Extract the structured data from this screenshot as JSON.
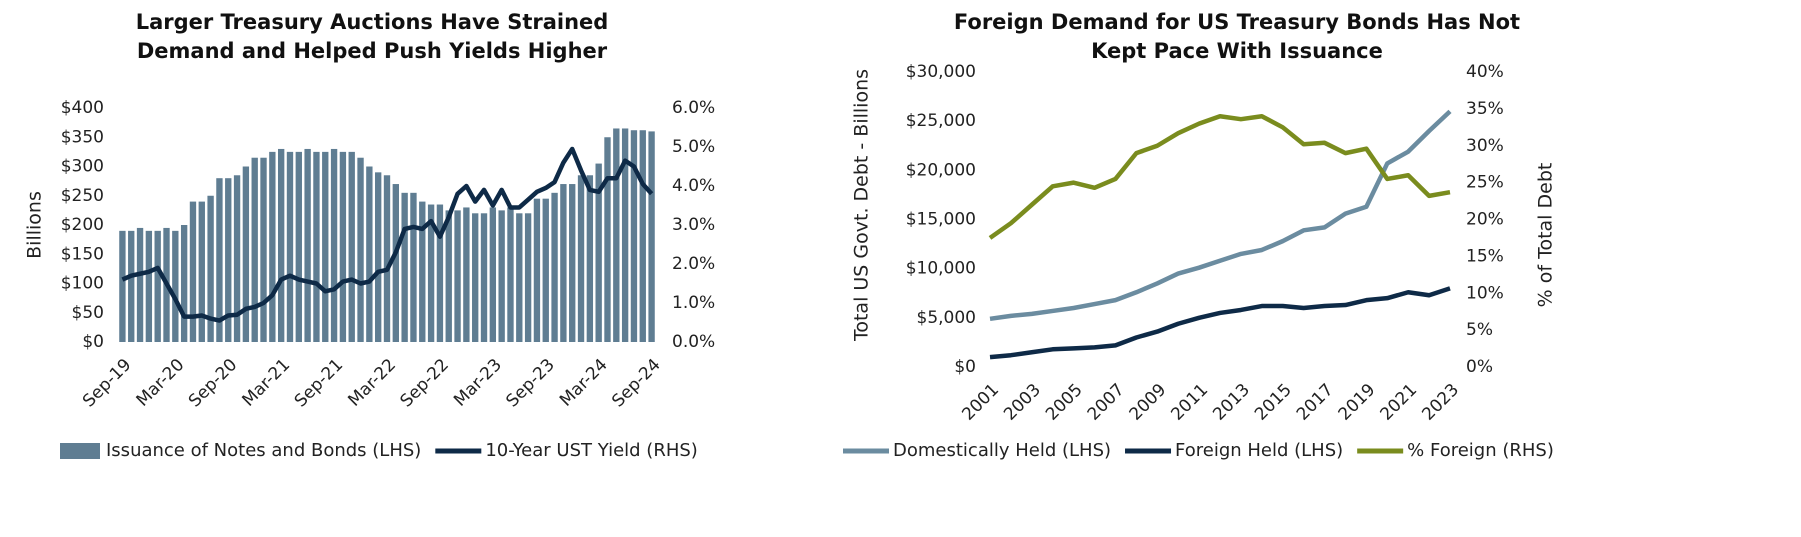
{
  "chart_data": [
    {
      "type": "bar-line",
      "title": "Larger Treasury Auctions Have Strained Demand and Helped Push Yields Higher",
      "ylabel": "Billions",
      "categories": [
        "Sep-19",
        null,
        null,
        null,
        null,
        null,
        "Mar-20",
        null,
        null,
        null,
        null,
        null,
        "Sep-20",
        null,
        null,
        null,
        null,
        null,
        "Mar-21",
        null,
        null,
        null,
        null,
        null,
        "Sep-21",
        null,
        null,
        null,
        null,
        null,
        "Mar-22",
        null,
        null,
        null,
        null,
        null,
        "Sep-22",
        null,
        null,
        null,
        null,
        null,
        "Mar-23",
        null,
        null,
        null,
        null,
        null,
        "Sep-23",
        null,
        null,
        null,
        null,
        null,
        "Mar-24",
        null,
        null,
        null,
        null,
        null,
        "Sep-24"
      ],
      "series": [
        {
          "name": "Issuance of Notes and Bonds (LHS)",
          "type": "bar",
          "color": "#5f7d92",
          "values": [
            190,
            190,
            195,
            190,
            190,
            195,
            190,
            200,
            240,
            240,
            250,
            280,
            280,
            285,
            300,
            315,
            315,
            325,
            330,
            325,
            325,
            330,
            325,
            325,
            330,
            325,
            325,
            315,
            300,
            290,
            285,
            270,
            255,
            255,
            240,
            235,
            235,
            225,
            225,
            230,
            220,
            220,
            230,
            225,
            230,
            220,
            220,
            245,
            245,
            255,
            270,
            270,
            285,
            285,
            305,
            350,
            365,
            365,
            362,
            362,
            360
          ]
        },
        {
          "name": "10-Year UST Yield (RHS)",
          "type": "line",
          "axis": "y2",
          "color": "#0e2a47",
          "values": [
            1.6,
            1.7,
            1.75,
            1.8,
            1.9,
            1.5,
            1.1,
            0.65,
            0.65,
            0.68,
            0.6,
            0.55,
            0.68,
            0.7,
            0.85,
            0.9,
            1.0,
            1.2,
            1.6,
            1.7,
            1.6,
            1.55,
            1.5,
            1.3,
            1.35,
            1.55,
            1.6,
            1.5,
            1.55,
            1.8,
            1.85,
            2.3,
            2.9,
            2.95,
            2.9,
            3.1,
            2.7,
            3.2,
            3.8,
            4.0,
            3.6,
            3.9,
            3.5,
            3.9,
            3.45,
            3.45,
            3.65,
            3.85,
            3.95,
            4.1,
            4.6,
            4.95,
            4.4,
            3.9,
            3.85,
            4.2,
            4.2,
            4.65,
            4.5,
            4.05,
            3.8
          ]
        }
      ],
      "ylim": [
        0,
        400
      ],
      "yticks": [
        {
          "value": 0,
          "label": "$0"
        },
        {
          "value": 50,
          "label": "$50"
        },
        {
          "value": 100,
          "label": "$100"
        },
        {
          "value": 150,
          "label": "$150"
        },
        {
          "value": 200,
          "label": "$200"
        },
        {
          "value": 250,
          "label": "$250"
        },
        {
          "value": 300,
          "label": "$300"
        },
        {
          "value": 350,
          "label": "$350"
        },
        {
          "value": 400,
          "label": "$400"
        }
      ],
      "y2lim": [
        0,
        6
      ],
      "y2ticks": [
        {
          "value": 0,
          "label": "0.0%"
        },
        {
          "value": 1,
          "label": "1.0%"
        },
        {
          "value": 2,
          "label": "2.0%"
        },
        {
          "value": 3,
          "label": "3.0%"
        },
        {
          "value": 4,
          "label": "4.0%"
        },
        {
          "value": 5,
          "label": "5.0%"
        },
        {
          "value": 6,
          "label": "6.0%"
        }
      ],
      "grid": false
    },
    {
      "type": "line",
      "title": "Foreign Demand for US Treasury Bonds Has Not Kept Pace With Issuance",
      "ylabel": "Total US Govt. Debt - Billions",
      "y2label": "% of Total Debt",
      "x": [
        2001,
        2002,
        2003,
        2004,
        2005,
        2006,
        2007,
        2008,
        2009,
        2010,
        2011,
        2012,
        2013,
        2014,
        2015,
        2016,
        2017,
        2018,
        2019,
        2020,
        2021,
        2022,
        2023
      ],
      "series": [
        {
          "name": "Domestically Held (LHS)",
          "type": "line",
          "color": "#6b8ca0",
          "values": [
            4900,
            5200,
            5400,
            5700,
            6000,
            6400,
            6800,
            7600,
            8500,
            9500,
            10100,
            10800,
            11500,
            11900,
            12800,
            13900,
            14200,
            15600,
            16300,
            20700,
            21900,
            24000,
            26000
          ]
        },
        {
          "name": "Foreign Held (LHS)",
          "type": "line",
          "color": "#0e2a47",
          "values": [
            1000,
            1200,
            1500,
            1800,
            1900,
            2000,
            2200,
            3000,
            3600,
            4400,
            5000,
            5500,
            5800,
            6200,
            6200,
            6000,
            6200,
            6300,
            6800,
            7000,
            7600,
            7300,
            8000
          ]
        },
        {
          "name": "% Foreign (RHS)",
          "type": "line",
          "axis": "y2",
          "color": "#7a8c1e",
          "values": [
            17.5,
            19.5,
            22,
            24.5,
            25,
            24.3,
            25.5,
            29,
            30,
            31.7,
            33,
            34,
            33.6,
            34,
            32.5,
            30.2,
            30.4,
            29,
            29.6,
            25.5,
            26,
            23.2,
            23.7
          ]
        }
      ],
      "xlim": [
        2001,
        2023
      ],
      "xticks": [
        2001,
        2003,
        2005,
        2007,
        2009,
        2011,
        2013,
        2015,
        2017,
        2019,
        2021,
        2023
      ],
      "ylim": [
        0,
        30000
      ],
      "yticks": [
        {
          "value": 0,
          "label": "$0"
        },
        {
          "value": 5000,
          "label": "$5,000"
        },
        {
          "value": 10000,
          "label": "$10,000"
        },
        {
          "value": 15000,
          "label": "$15,000"
        },
        {
          "value": 20000,
          "label": "$20,000"
        },
        {
          "value": 25000,
          "label": "$25,000"
        },
        {
          "value": 30000,
          "label": "$30,000"
        }
      ],
      "y2lim": [
        0,
        40
      ],
      "y2ticks": [
        {
          "value": 0,
          "label": "0%"
        },
        {
          "value": 5,
          "label": "5%"
        },
        {
          "value": 10,
          "label": "10%"
        },
        {
          "value": 15,
          "label": "15%"
        },
        {
          "value": 20,
          "label": "20%"
        },
        {
          "value": 25,
          "label": "25%"
        },
        {
          "value": 30,
          "label": "30%"
        },
        {
          "value": 35,
          "label": "35%"
        },
        {
          "value": 40,
          "label": "40%"
        }
      ],
      "grid": false
    }
  ]
}
